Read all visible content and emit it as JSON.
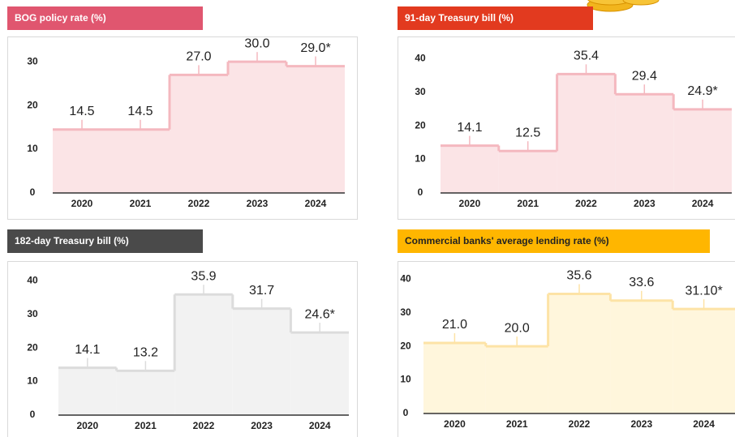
{
  "chart_data": [
    {
      "type": "step",
      "title": "BOG policy rate (%)",
      "header_color": "#e0566f",
      "categories": [
        "2020",
        "2021",
        "2022",
        "2023",
        "2024"
      ],
      "values": [
        14.5,
        14.5,
        27.0,
        30.0,
        29.0
      ],
      "value_labels": [
        "14.5",
        "14.5",
        "27.0",
        "30.0",
        "29.0*"
      ],
      "color": "#f4b8bf",
      "fill": "#fbe4e6",
      "ylim": [
        0,
        33
      ],
      "yticks": [
        0,
        10,
        20,
        30
      ]
    },
    {
      "type": "step",
      "title": "91-day Treasury bill (%)",
      "header_color": "#e23a1f",
      "categories": [
        "2020",
        "2021",
        "2022",
        "2023",
        "2024"
      ],
      "values": [
        14.1,
        12.5,
        35.4,
        29.4,
        24.9
      ],
      "value_labels": [
        "14.1",
        "12.5",
        "35.4",
        "29.4",
        "24.9*"
      ],
      "color": "#f4b8bf",
      "fill": "#fbe4e6",
      "ylim": [
        0,
        42
      ],
      "yticks": [
        0,
        10,
        20,
        30,
        40
      ]
    },
    {
      "type": "step",
      "title": "182-day Treasury bill (%)",
      "header_color": "#4a4a4a",
      "categories": [
        "2020",
        "2021",
        "2022",
        "2023",
        "2024"
      ],
      "values": [
        14.1,
        13.2,
        35.9,
        31.7,
        24.6
      ],
      "value_labels": [
        "14.1",
        "13.2",
        "35.9",
        "31.7",
        "24.6*"
      ],
      "color": "#dcdcdc",
      "fill": "#f2f2f2",
      "ylim": [
        0,
        42
      ],
      "yticks": [
        0,
        10,
        20,
        30,
        40
      ]
    },
    {
      "type": "step",
      "title": "Commercial banks' average lending rate (%)",
      "header_color": "#ffb600",
      "categories": [
        "2020",
        "2021",
        "2022",
        "2023",
        "2024"
      ],
      "values": [
        21.0,
        20.0,
        35.6,
        33.6,
        31.1
      ],
      "value_labels": [
        "21.0",
        "20.0",
        "35.6",
        "33.6",
        "31.10*"
      ],
      "color": "#fde3a6",
      "fill": "#fff6dc",
      "ylim": [
        0,
        42
      ],
      "yticks": [
        0,
        10,
        20,
        30,
        40
      ]
    }
  ]
}
